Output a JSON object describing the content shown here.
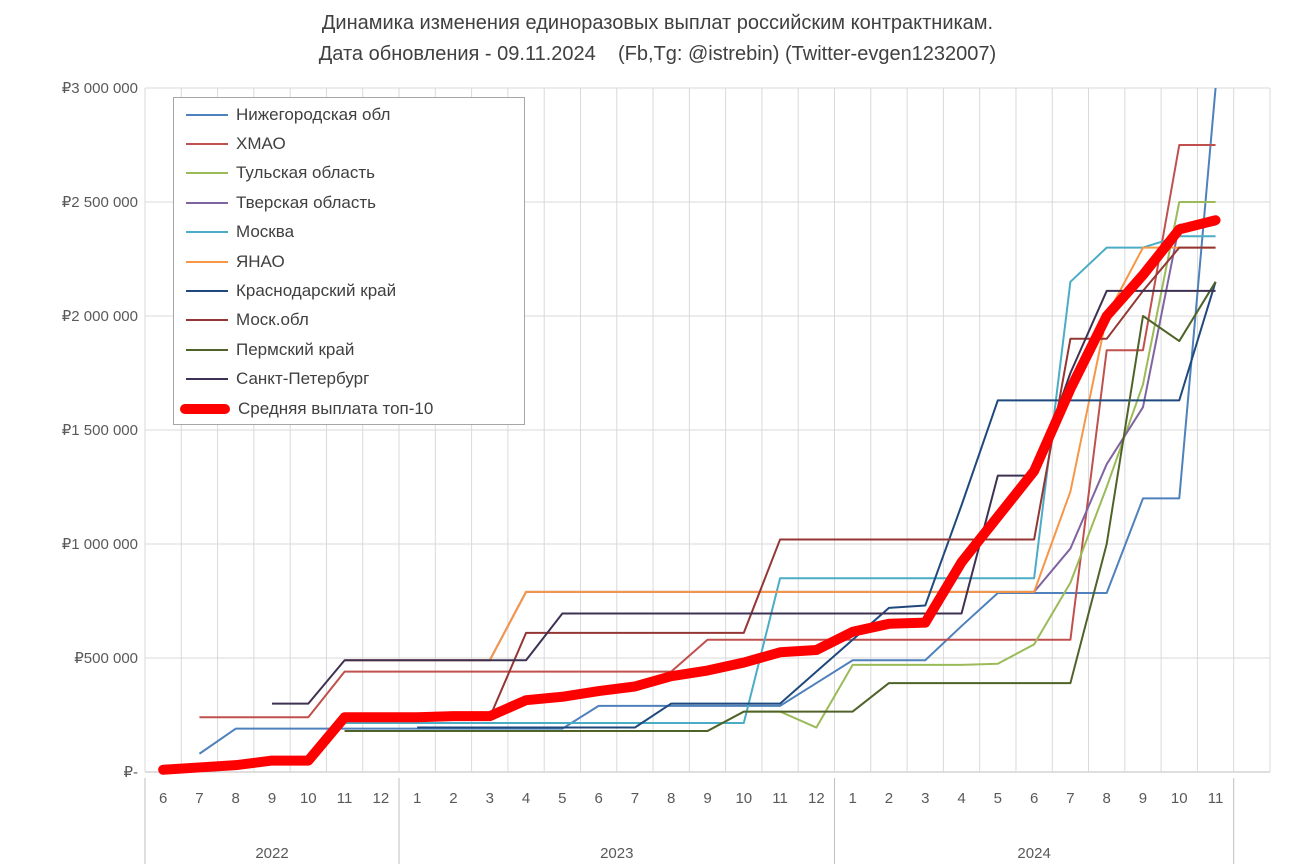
{
  "title": "Динамика изменения единоразовых выплат российским контрактникам.",
  "subtitle": "Дата обновления - 09.11.2024    (Fb,Tg: @istrebin) (Twitter-evgen1232007)",
  "colors": {
    "grid": "#D9D9D9",
    "axis": "#BFBFBF",
    "tick_text": "#595959",
    "title_text": "#404040",
    "legend_border": "#A6A6A6",
    "average_line": "#FF0000"
  },
  "chart_data": {
    "type": "line",
    "title": "Динамика изменения единоразовых выплат российским контрактникам.",
    "subtitle": "Дата обновления - 09.11.2024    (Fb,Tg: @istrebin) (Twitter-evgen1232007)",
    "xlabel": "",
    "ylabel": "",
    "grid": true,
    "legend_position": "top-left-inside",
    "ylim": [
      0,
      3000000
    ],
    "y_ticks": [
      {
        "value": 0,
        "label": "₽-"
      },
      {
        "value": 500000,
        "label": "₽500 000"
      },
      {
        "value": 1000000,
        "label": "₽1 000 000"
      },
      {
        "value": 1500000,
        "label": "₽1 500 000"
      },
      {
        "value": 2000000,
        "label": "₽2 000 000"
      },
      {
        "value": 2500000,
        "label": "₽2 500 000"
      },
      {
        "value": 3000000,
        "label": "₽3 000 000"
      }
    ],
    "x_months": [
      "6",
      "7",
      "8",
      "9",
      "10",
      "11",
      "12",
      "1",
      "2",
      "3",
      "4",
      "5",
      "6",
      "7",
      "8",
      "9",
      "10",
      "11",
      "12",
      "1",
      "2",
      "3",
      "4",
      "5",
      "6",
      "7",
      "8",
      "9",
      "10",
      "11"
    ],
    "year_groups": [
      {
        "label": "2022",
        "from_cell": 0,
        "to_cell": 7
      },
      {
        "label": "2023",
        "from_cell": 7,
        "to_cell": 19
      },
      {
        "label": "2024",
        "from_cell": 19,
        "to_cell": 30
      }
    ],
    "series": [
      {
        "name": "Нижегородская обл",
        "color": "#4F81BD",
        "thick": false,
        "values": [
          null,
          80000,
          190000,
          190000,
          190000,
          190000,
          190000,
          190000,
          190000,
          190000,
          190000,
          190000,
          290000,
          290000,
          290000,
          290000,
          290000,
          290000,
          390000,
          490000,
          490000,
          490000,
          640000,
          785000,
          785000,
          785000,
          785000,
          1200000,
          1200000,
          3000000
        ]
      },
      {
        "name": "ХМАО",
        "color": "#C0504D",
        "thick": false,
        "values": [
          null,
          240000,
          240000,
          240000,
          240000,
          440000,
          440000,
          440000,
          440000,
          440000,
          440000,
          440000,
          440000,
          440000,
          440000,
          580000,
          580000,
          580000,
          580000,
          580000,
          580000,
          580000,
          580000,
          580000,
          580000,
          580000,
          1850000,
          1850000,
          2750000,
          2750000
        ]
      },
      {
        "name": "Тульская область",
        "color": "#9BBB59",
        "thick": false,
        "values": [
          null,
          null,
          null,
          null,
          null,
          180000,
          180000,
          180000,
          180000,
          180000,
          180000,
          180000,
          180000,
          180000,
          180000,
          180000,
          265000,
          265000,
          195000,
          470000,
          470000,
          470000,
          470000,
          475000,
          560000,
          830000,
          1250000,
          1700000,
          2500000,
          2500000
        ]
      },
      {
        "name": "Тверская область",
        "color": "#8064A2",
        "thick": false,
        "values": [
          null,
          null,
          null,
          null,
          null,
          490000,
          490000,
          490000,
          490000,
          490000,
          790000,
          790000,
          790000,
          790000,
          790000,
          790000,
          790000,
          790000,
          790000,
          790000,
          790000,
          790000,
          790000,
          790000,
          790000,
          980000,
          1350000,
          1600000,
          2400000,
          2400000
        ]
      },
      {
        "name": "Москва",
        "color": "#4BACC6",
        "thick": false,
        "values": [
          null,
          null,
          null,
          null,
          null,
          215000,
          215000,
          215000,
          215000,
          215000,
          215000,
          215000,
          215000,
          215000,
          215000,
          215000,
          215000,
          850000,
          850000,
          850000,
          850000,
          850000,
          850000,
          850000,
          850000,
          2150000,
          2300000,
          2300000,
          2350000,
          2350000
        ]
      },
      {
        "name": "ЯНАО",
        "color": "#F79646",
        "thick": false,
        "values": [
          null,
          null,
          null,
          null,
          null,
          490000,
          490000,
          490000,
          490000,
          490000,
          790000,
          790000,
          790000,
          790000,
          790000,
          790000,
          790000,
          790000,
          790000,
          790000,
          790000,
          790000,
          790000,
          790000,
          790000,
          1230000,
          2000000,
          2300000,
          2300000,
          2300000
        ]
      },
      {
        "name": "Краснодарский край",
        "color": "#1F497D",
        "thick": false,
        "values": [
          null,
          null,
          null,
          null,
          null,
          null,
          null,
          195000,
          195000,
          195000,
          195000,
          195000,
          195000,
          195000,
          300000,
          300000,
          300000,
          300000,
          440000,
          580000,
          720000,
          730000,
          1170000,
          1630000,
          1630000,
          1630000,
          1630000,
          1630000,
          1630000,
          2150000
        ]
      },
      {
        "name": "Моск.обл",
        "color": "#943634",
        "thick": false,
        "values": [
          null,
          null,
          null,
          null,
          null,
          240000,
          240000,
          240000,
          240000,
          240000,
          610000,
          610000,
          610000,
          610000,
          610000,
          610000,
          610000,
          1020000,
          1020000,
          1020000,
          1020000,
          1020000,
          1020000,
          1020000,
          1020000,
          1900000,
          1900000,
          2110000,
          2300000,
          2300000
        ]
      },
      {
        "name": "Пермский край",
        "color": "#4F6228",
        "thick": false,
        "values": [
          null,
          null,
          null,
          null,
          null,
          180000,
          180000,
          180000,
          180000,
          180000,
          180000,
          180000,
          180000,
          180000,
          180000,
          180000,
          265000,
          265000,
          265000,
          265000,
          390000,
          390000,
          390000,
          390000,
          390000,
          390000,
          1000000,
          2000000,
          1890000,
          2150000
        ]
      },
      {
        "name": "Санкт-Петербург",
        "color": "#3F3151",
        "thick": false,
        "values": [
          null,
          null,
          null,
          300000,
          300000,
          490000,
          490000,
          490000,
          490000,
          490000,
          490000,
          695000,
          695000,
          695000,
          695000,
          695000,
          695000,
          695000,
          695000,
          695000,
          695000,
          695000,
          695000,
          1300000,
          1300000,
          1750000,
          2110000,
          2110000,
          2110000,
          2110000
        ]
      },
      {
        "name": "Средняя выплата топ-10",
        "color": "#FF0000",
        "thick": true,
        "values": [
          10000,
          20000,
          30000,
          50000,
          50000,
          240000,
          240000,
          240000,
          245000,
          245000,
          315000,
          330000,
          355000,
          375000,
          420000,
          445000,
          480000,
          525000,
          535000,
          615000,
          650000,
          655000,
          920000,
          1120000,
          1320000,
          1680000,
          2000000,
          2180000,
          2380000,
          2420000
        ]
      }
    ]
  }
}
